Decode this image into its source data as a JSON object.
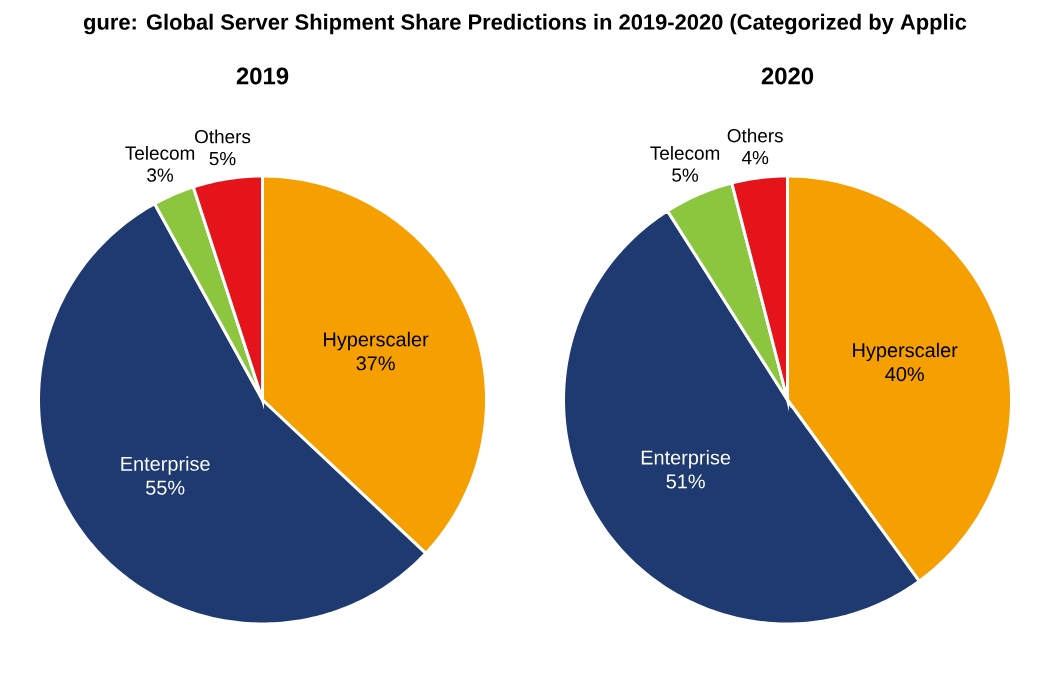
{
  "chart_data": [
    {
      "type": "pie",
      "title": "gure: Global Server Shipment Share Predictions in 2019-2020 (Categorized by Applic",
      "subtitle": "2019",
      "categories": [
        "Hyperscaler",
        "Enterprise",
        "Telecom",
        "Others"
      ],
      "values": [
        37,
        55,
        3,
        5
      ],
      "value_labels": [
        "37%",
        "55%",
        "3%",
        "5%"
      ],
      "colors": [
        "#f5a000",
        "#1f3a70",
        "#8cc63e",
        "#e5141b"
      ]
    },
    {
      "type": "pie",
      "title": "2020",
      "categories": [
        "Hyperscaler",
        "Enterprise",
        "Telecom",
        "Others"
      ],
      "values": [
        40,
        51,
        5,
        4
      ],
      "value_labels": [
        "40%",
        "51%",
        "5%",
        "4%"
      ],
      "colors": [
        "#f5a000",
        "#1f3a70",
        "#8cc63e",
        "#e5141b"
      ]
    }
  ]
}
